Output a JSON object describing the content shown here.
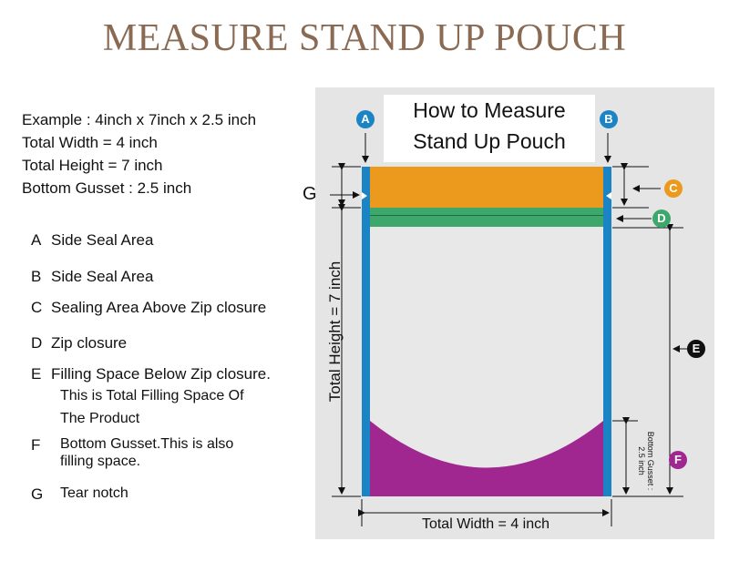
{
  "title": "MEASURE STAND UP POUCH",
  "example": {
    "line1": "Example : 4inch x 7inch x 2.5 inch",
    "line2": "Total Width  = 4 inch",
    "line3": "Total Height = 7 inch",
    "line4": "Bottom Gusset : 2.5 inch"
  },
  "legend": {
    "a_letter": "A",
    "a_text": "Side Seal Area",
    "b_letter": "B",
    "b_text": "Side Seal Area",
    "c_letter": "C",
    "c_text": "Sealing Area Above Zip closure",
    "d_letter": "D",
    "d_text": "Zip closure",
    "e_letter": "E",
    "e_text1": "Filling Space Below Zip closure.",
    "e_text2": "This is Total Filling Space Of",
    "e_text3": "The Product",
    "f_letter": "F",
    "f_text1": "Bottom Gusset.This is also",
    "f_text2": "filling space.",
    "g_letter": "G",
    "g_text": "Tear notch"
  },
  "diagram": {
    "heading1": "How to Measure",
    "heading2": "Stand Up Pouch",
    "marker_a": "A",
    "marker_b": "B",
    "marker_c": "C",
    "marker_d": "D",
    "marker_e": "E",
    "marker_f": "F",
    "marker_g": "G",
    "total_height": "Total Height = 7 inch",
    "total_width": "Total Width = 4 inch",
    "bottom_gusset_1": "Bottom Gusset :",
    "bottom_gusset_2": "2.5 inch"
  },
  "colors": {
    "title": "#8a6a52",
    "side_seal": "#1a84c4",
    "top_seal": "#ec9a1e",
    "zip": "#3ea86c",
    "gusset": "#a0278f",
    "body": "#e8e8e8",
    "panel": "#e5e5e5"
  }
}
